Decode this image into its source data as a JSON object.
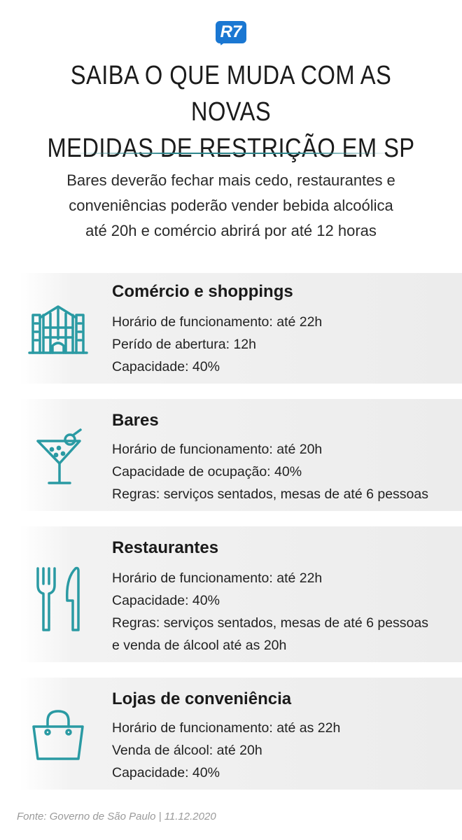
{
  "logo": {
    "text": "R7",
    "color": "#1a77d2"
  },
  "title": {
    "line1": "SAIBA O QUE MUDA COM AS NOVAS",
    "line2": "MEDIDAS DE RESTRIÇÃO EM SP"
  },
  "subtitle": {
    "line1": "Bares deverão fechar mais cedo, restaurantes e",
    "line2": "conveniências poderão vender bebida alcoólica",
    "line3": "até 20h e comércio abrirá por até 12 horas"
  },
  "accent_color": "#2a9aa3",
  "sections": [
    {
      "icon": "building-icon",
      "title": "Comércio e shoppings",
      "lines": [
        "Horário de funcionamento: até 22h",
        "Perído de abertura: 12h",
        "Capacidade: 40%"
      ]
    },
    {
      "icon": "cocktail-icon",
      "title": "Bares",
      "lines": [
        "Horário de funcionamento: até 20h",
        "Capacidade de ocupação: 40%",
        "Regras: serviços sentados, mesas de até 6 pessoas"
      ]
    },
    {
      "icon": "fork-knife-icon",
      "title": "Restaurantes",
      "lines": [
        "Horário de funcionamento: até 22h",
        "Capacidade: 40%",
        "Regras: serviços sentados, mesas de até 6 pessoas",
        "e venda de álcool até as 20h"
      ]
    },
    {
      "icon": "shopping-bag-icon",
      "title": "Lojas de conveniência",
      "lines": [
        "Horário de funcionamento: até as 22h",
        "Venda de álcool: até 20h",
        "Capacidade: 40%"
      ]
    }
  ],
  "source": "Fonte: Governo de São Paulo | 11.12.2020"
}
